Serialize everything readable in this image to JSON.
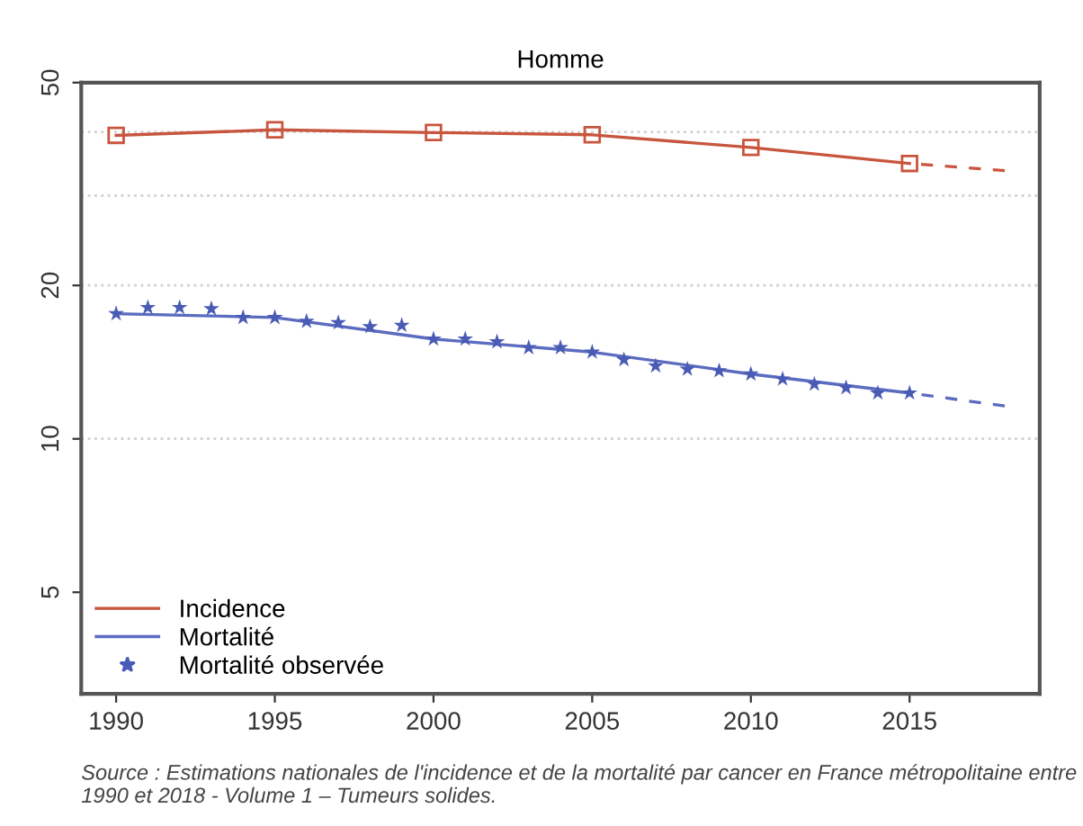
{
  "chart_data": {
    "type": "line",
    "title": "Homme",
    "log": "y",
    "xlim": [
      1988.9,
      2019.1
    ],
    "xticks": [
      1990,
      1995,
      2000,
      2005,
      2010,
      2015
    ],
    "ylim": [
      3.16,
      50
    ],
    "yticks": [
      5,
      10,
      20,
      50
    ],
    "grid": false,
    "legend": "bottom left",
    "series": [
      {
        "name": "Incidence",
        "color": "#c8553d",
        "marker": "square",
        "line_style": "solid",
        "x": [
          1990,
          1995,
          2000,
          2005,
          2010,
          2015
        ],
        "values": [
          39.4,
          40.4,
          39.9,
          39.5,
          37.3,
          34.7
        ]
      },
      {
        "color": "#c8553d",
        "marker": "none",
        "line_style": "dashed",
        "x": [
          2015,
          2018
        ],
        "values": [
          34.7,
          33.6
        ]
      },
      {
        "name": "Mortalité",
        "color": "#5b6bbf",
        "marker": "none",
        "line_style": "solid",
        "x": [
          1990,
          1995,
          2000,
          2005,
          2010,
          2015
        ],
        "values": [
          17.6,
          17.3,
          15.7,
          14.8,
          13.4,
          12.3
        ]
      },
      {
        "color": "#5b6bbf",
        "marker": "none",
        "line_style": "dashed",
        "x": [
          2015,
          2018
        ],
        "values": [
          12.3,
          11.6
        ]
      },
      {
        "name": "Mortalité observée",
        "color": "#4a5bb5",
        "type": "scatter",
        "marker": "star",
        "x": [
          1990,
          1991,
          1992,
          1993,
          1994,
          1995,
          1996,
          1997,
          1998,
          1999,
          2000,
          2001,
          2002,
          2003,
          2004,
          2005,
          2006,
          2007,
          2008,
          2009,
          2010,
          2011,
          2012,
          2013,
          2014,
          2015
        ],
        "values": [
          17.6,
          18.1,
          18.1,
          18.0,
          17.3,
          17.3,
          17.0,
          16.9,
          16.6,
          16.7,
          15.7,
          15.7,
          15.5,
          15.1,
          15.1,
          14.8,
          14.3,
          13.9,
          13.7,
          13.6,
          13.4,
          13.1,
          12.8,
          12.6,
          12.3,
          12.3
        ]
      }
    ],
    "ref_lines": [
      {
        "axis": "y",
        "value": 10,
        "color": "#d0d0d0",
        "line_style": "dotted"
      },
      {
        "axis": "y",
        "value": 20,
        "color": "#d0d0d0",
        "line_style": "dotted"
      },
      {
        "axis": "y",
        "value": 30,
        "color": "#d0d0d0",
        "line_style": "dotted"
      },
      {
        "axis": "y",
        "value": 40,
        "color": "#d0d0d0",
        "line_style": "dotted"
      }
    ],
    "annotations": [
      "Source : Estimations nationales de l'incidence et de la mortalité par cancer en France métropolitaine entre 1990 et 2018 - Volume 1 – Tumeurs solides."
    ]
  }
}
